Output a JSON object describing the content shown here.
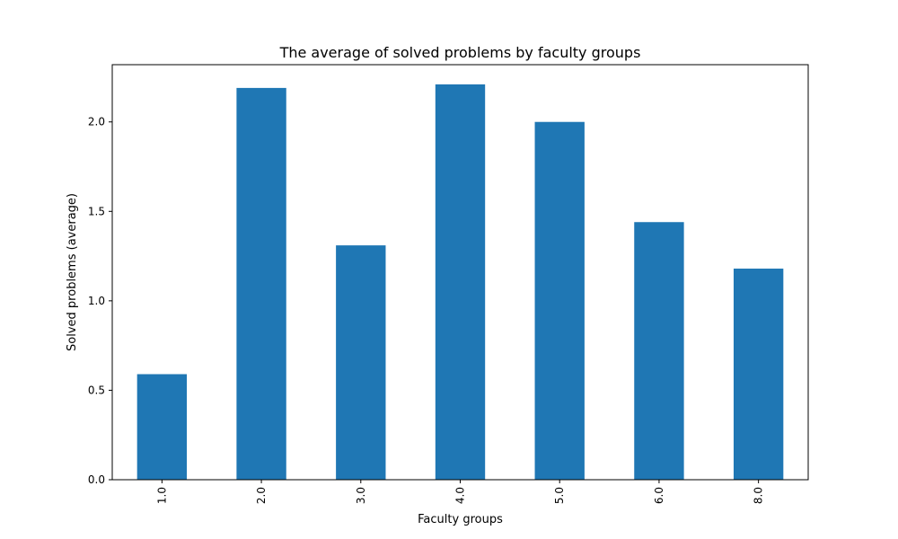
{
  "chart_data": {
    "type": "bar",
    "title": "The average of solved problems by faculty groups",
    "xlabel": "Faculty groups",
    "ylabel": "Solved problems (average)",
    "categories": [
      "1.0",
      "2.0",
      "3.0",
      "4.0",
      "5.0",
      "6.0",
      "8.0"
    ],
    "values": [
      0.59,
      2.19,
      1.31,
      2.21,
      2.0,
      1.44,
      1.18
    ],
    "ylim": [
      0,
      2.32
    ],
    "yticks": [
      0.0,
      0.5,
      1.0,
      1.5,
      2.0
    ],
    "ytick_labels": [
      "0.0",
      "0.5",
      "1.0",
      "1.5",
      "2.0"
    ],
    "bar_color": "#1f77b4",
    "grid": false,
    "legend": "none"
  }
}
